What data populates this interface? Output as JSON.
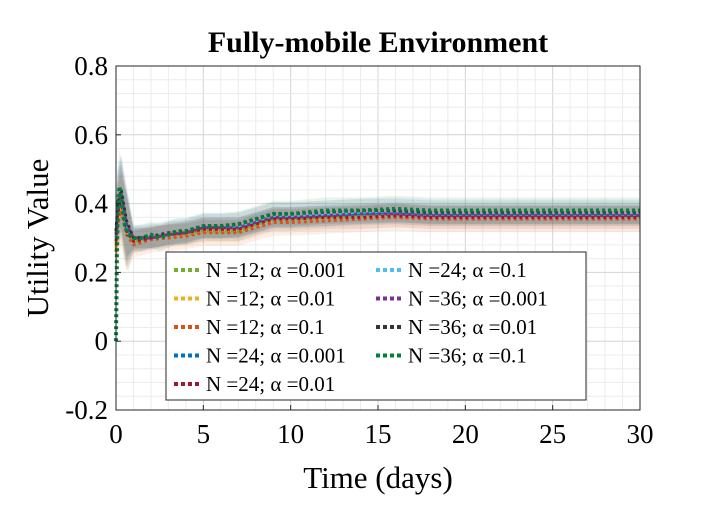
{
  "chart_data": {
    "type": "line",
    "title": "Fully-mobile Environment",
    "xlabel": "Time (days)",
    "ylabel": "Utility Value",
    "xlim": [
      0,
      30
    ],
    "ylim": [
      -0.2,
      0.8
    ],
    "xticks": [
      0,
      5,
      10,
      15,
      20,
      25,
      30
    ],
    "yticks": [
      -0.2,
      0,
      0.2,
      0.4,
      0.6,
      0.8
    ],
    "ytick_labels": [
      "-0.2",
      "0",
      "0.2",
      "0.4",
      "0.6",
      "0.8"
    ],
    "grid": true,
    "legend_position": "bottom-center",
    "legend_columns": 2,
    "line_style": "dotted",
    "shaded_band": true,
    "series": [
      {
        "name": "N =12; α =0.001",
        "color": "#77AC30",
        "x": [
          0,
          0.1,
          0.3,
          0.6,
          1,
          2,
          3,
          4,
          5,
          6,
          7,
          8,
          9,
          10,
          12,
          14,
          16,
          18,
          20,
          22,
          24,
          26,
          28,
          30
        ],
        "y": [
          0.28,
          0.36,
          0.4,
          0.33,
          0.29,
          0.3,
          0.31,
          0.31,
          0.32,
          0.32,
          0.32,
          0.34,
          0.355,
          0.355,
          0.36,
          0.365,
          0.37,
          0.365,
          0.365,
          0.365,
          0.365,
          0.365,
          0.365,
          0.365
        ]
      },
      {
        "name": "N =12; α =0.01",
        "color": "#EDB120",
        "x": [
          0,
          0.1,
          0.3,
          0.6,
          1,
          2,
          3,
          4,
          5,
          6,
          7,
          8,
          9,
          10,
          12,
          14,
          16,
          18,
          20,
          22,
          24,
          26,
          28,
          30
        ],
        "y": [
          0.27,
          0.35,
          0.39,
          0.32,
          0.29,
          0.3,
          0.305,
          0.31,
          0.32,
          0.32,
          0.32,
          0.335,
          0.35,
          0.35,
          0.355,
          0.36,
          0.365,
          0.36,
          0.36,
          0.36,
          0.36,
          0.36,
          0.36,
          0.36
        ]
      },
      {
        "name": "N =12; α =0.1",
        "color": "#D95319",
        "x": [
          0,
          0.1,
          0.3,
          0.6,
          1,
          2,
          3,
          4,
          5,
          6,
          7,
          8,
          9,
          10,
          12,
          14,
          16,
          18,
          20,
          22,
          24,
          26,
          28,
          30
        ],
        "y": [
          0.26,
          0.34,
          0.38,
          0.31,
          0.28,
          0.295,
          0.3,
          0.305,
          0.315,
          0.315,
          0.315,
          0.33,
          0.345,
          0.345,
          0.35,
          0.355,
          0.36,
          0.355,
          0.355,
          0.355,
          0.355,
          0.355,
          0.355,
          0.355
        ]
      },
      {
        "name": "N =24; α =0.001",
        "color": "#0072BD",
        "x": [
          0,
          0.1,
          0.3,
          0.6,
          1,
          2,
          3,
          4,
          5,
          6,
          7,
          8,
          9,
          10,
          12,
          14,
          16,
          18,
          20,
          22,
          24,
          26,
          28,
          30
        ],
        "y": [
          0.3,
          0.38,
          0.42,
          0.33,
          0.3,
          0.3,
          0.31,
          0.32,
          0.33,
          0.33,
          0.33,
          0.345,
          0.36,
          0.36,
          0.365,
          0.37,
          0.375,
          0.37,
          0.37,
          0.37,
          0.37,
          0.37,
          0.37,
          0.37
        ]
      },
      {
        "name": "N =24; α =0.01",
        "color": "#A2142F",
        "x": [
          0,
          0.1,
          0.3,
          0.6,
          1,
          2,
          3,
          4,
          5,
          6,
          7,
          8,
          9,
          10,
          12,
          14,
          16,
          18,
          20,
          22,
          24,
          26,
          28,
          30
        ],
        "y": [
          0.29,
          0.37,
          0.41,
          0.32,
          0.29,
          0.3,
          0.31,
          0.315,
          0.325,
          0.325,
          0.325,
          0.34,
          0.355,
          0.355,
          0.36,
          0.36,
          0.365,
          0.36,
          0.36,
          0.36,
          0.36,
          0.36,
          0.36,
          0.36
        ]
      },
      {
        "name": "N =24; α =0.1",
        "color": "#4DBEEE",
        "x": [
          0,
          0.1,
          0.3,
          0.6,
          1,
          2,
          3,
          4,
          5,
          6,
          7,
          8,
          9,
          10,
          12,
          14,
          16,
          18,
          20,
          22,
          24,
          26,
          28,
          30
        ],
        "y": [
          0.3,
          0.39,
          0.43,
          0.34,
          0.3,
          0.305,
          0.315,
          0.32,
          0.335,
          0.335,
          0.335,
          0.35,
          0.365,
          0.365,
          0.37,
          0.375,
          0.38,
          0.375,
          0.375,
          0.375,
          0.375,
          0.375,
          0.375,
          0.375
        ]
      },
      {
        "name": "N =36; α =0.001",
        "color": "#7E2F8E",
        "x": [
          0,
          0.1,
          0.3,
          0.6,
          1,
          2,
          3,
          4,
          5,
          6,
          7,
          8,
          9,
          10,
          12,
          14,
          16,
          18,
          20,
          22,
          24,
          26,
          28,
          30
        ],
        "y": [
          0.31,
          0.39,
          0.43,
          0.34,
          0.3,
          0.3,
          0.31,
          0.315,
          0.33,
          0.33,
          0.33,
          0.345,
          0.36,
          0.36,
          0.365,
          0.37,
          0.37,
          0.365,
          0.365,
          0.365,
          0.365,
          0.365,
          0.365,
          0.365
        ]
      },
      {
        "name": "N =36; α =0.01",
        "color": "#333333",
        "x": [
          0,
          0.1,
          0.3,
          0.6,
          1,
          2,
          3,
          4,
          5,
          6,
          7,
          8,
          9,
          10,
          12,
          14,
          16,
          18,
          20,
          22,
          24,
          26,
          28,
          30
        ],
        "y": [
          0.32,
          0.4,
          0.44,
          0.35,
          0.3,
          0.305,
          0.315,
          0.32,
          0.335,
          0.335,
          0.34,
          0.355,
          0.37,
          0.37,
          0.375,
          0.38,
          0.38,
          0.375,
          0.375,
          0.375,
          0.375,
          0.375,
          0.375,
          0.375
        ]
      },
      {
        "name": "N =36; α =0.1",
        "color": "#007F3F",
        "x": [
          0,
          0.05,
          0.1,
          0.2,
          0.3,
          0.5,
          0.7,
          1,
          1.5,
          2,
          2.5,
          3,
          3.5,
          4,
          5,
          6,
          7,
          8,
          9,
          10,
          11,
          12,
          14,
          16,
          18,
          20,
          22,
          24,
          26,
          28,
          30
        ],
        "y": [
          0.0,
          0.25,
          0.38,
          0.45,
          0.41,
          0.34,
          0.31,
          0.3,
          0.3,
          0.31,
          0.3,
          0.31,
          0.32,
          0.32,
          0.335,
          0.335,
          0.34,
          0.355,
          0.37,
          0.37,
          0.375,
          0.38,
          0.38,
          0.385,
          0.38,
          0.38,
          0.38,
          0.38,
          0.38,
          0.38,
          0.38
        ]
      }
    ]
  }
}
